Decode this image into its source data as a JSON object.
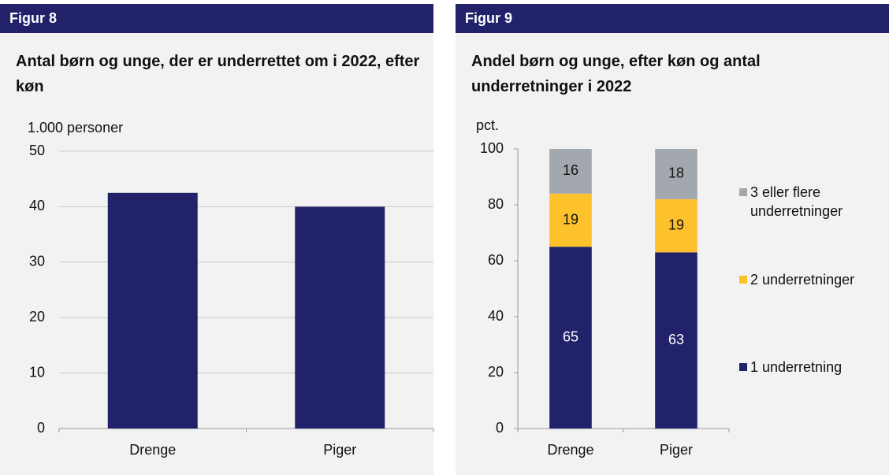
{
  "chart_data": [
    {
      "type": "bar",
      "label": "Figur 8",
      "title": "Antal børn og unge, der er underrettet om i 2022, efter køn",
      "y_label": "1.000 personer",
      "categories": [
        "Drenge",
        "Piger"
      ],
      "values": [
        42.5,
        40
      ],
      "color": "#22226b",
      "ylim": [
        0,
        50
      ],
      "yticks": [
        0,
        10,
        20,
        30,
        40,
        50
      ],
      "grid": true
    },
    {
      "type": "stacked_bar",
      "label": "Figur 9",
      "title": "Andel børn og unge, efter køn og antal underretninger i 2022",
      "y_label": "pct.",
      "categories": [
        "Drenge",
        "Piger"
      ],
      "series": [
        {
          "name": "1 underretning",
          "color": "#22226b",
          "values": [
            65,
            63
          ]
        },
        {
          "name": "2 underretninger",
          "color": "#fcc12b",
          "values": [
            19,
            19
          ]
        },
        {
          "name": "3 eller flere underretninger",
          "color": "#a3a7ae",
          "values": [
            16,
            18
          ]
        }
      ],
      "ylim": [
        0,
        100
      ],
      "yticks": [
        0,
        20,
        40,
        60,
        80,
        100
      ],
      "grid": false,
      "legend": "right"
    }
  ]
}
